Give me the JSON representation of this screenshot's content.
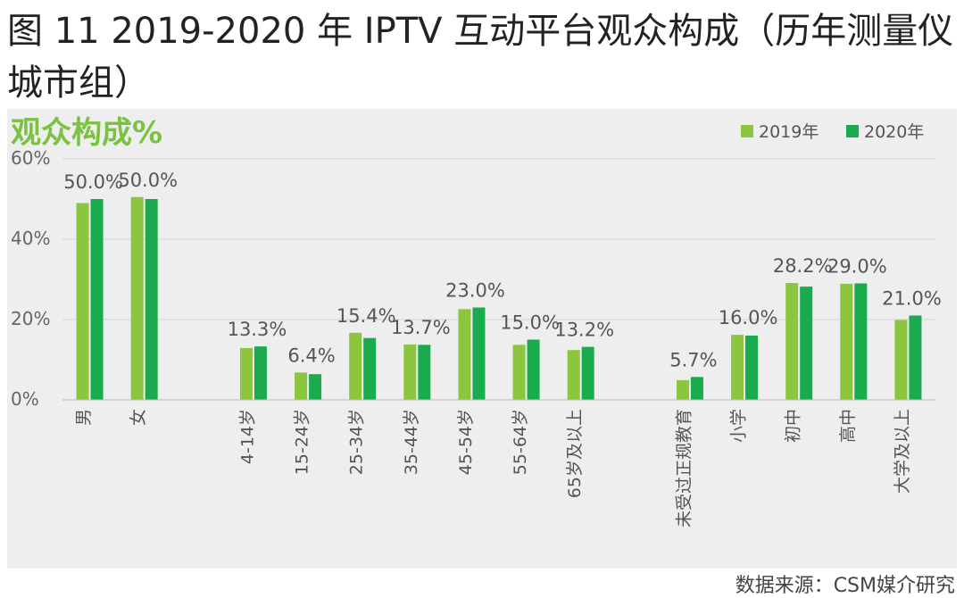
{
  "figure_title": "图 11 2019-2020 年 IPTV 互动平台观众构成（历年测量仪城市组）",
  "source": "数据来源：CSM媒介研究",
  "colors": {
    "series_2019": "#8cc63f",
    "series_2020": "#1aab4f",
    "title_green": "#7cc242"
  },
  "chart_data": {
    "type": "bar",
    "title": "观众构成%",
    "ylim": [
      0,
      60
    ],
    "yticks": [
      "0%",
      "20%",
      "40%",
      "60%"
    ],
    "grid": true,
    "legend_position": "top-right",
    "categories": [
      "男",
      "女",
      "4-14岁",
      "15-24岁",
      "25-34岁",
      "35-44岁",
      "45-54岁",
      "55-64岁",
      "65岁及以上",
      "未受过正规教育",
      "小学",
      "初中",
      "高中",
      "大学及以上"
    ],
    "groups": [
      [
        0,
        1
      ],
      [
        2,
        3,
        4,
        5,
        6,
        7,
        8
      ],
      [
        9,
        10,
        11,
        12,
        13
      ]
    ],
    "series": [
      {
        "name": "2019年",
        "values": [
          49.0,
          50.5,
          12.9,
          6.8,
          16.7,
          13.8,
          22.6,
          13.7,
          12.4,
          4.9,
          16.2,
          29.1,
          28.9,
          19.9
        ]
      },
      {
        "name": "2020年",
        "values": [
          50.0,
          50.0,
          13.3,
          6.4,
          15.4,
          13.7,
          23.0,
          15.0,
          13.2,
          5.7,
          16.0,
          28.2,
          29.0,
          21.0
        ]
      }
    ],
    "data_labels": [
      "50.0%",
      "50.0%",
      "13.3%",
      "6.4%",
      "15.4%",
      "13.7%",
      "23.0%",
      "15.0%",
      "13.2%",
      "5.7%",
      "16.0%",
      "28.2%",
      "29.0%",
      "21.0%"
    ]
  }
}
